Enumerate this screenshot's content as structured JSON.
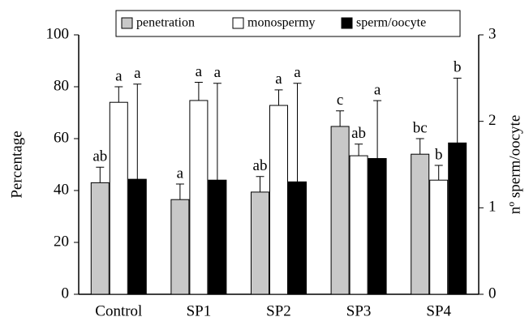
{
  "chart_data": {
    "type": "bar",
    "categories": [
      "Control",
      "SP1",
      "SP2",
      "SP3",
      "SP4"
    ],
    "ylabel": "Percentage",
    "y2label": "nº sperm/oocyte",
    "ylim": [
      0,
      100
    ],
    "yticks": [
      0,
      20,
      40,
      60,
      80,
      100
    ],
    "y2lim": [
      0,
      3
    ],
    "y2ticks": [
      0,
      1,
      2,
      3
    ],
    "legend": "top",
    "series": [
      {
        "name": "penetration",
        "color": "#c8c8c8",
        "values": [
          43,
          36.5,
          39.4,
          64.7,
          54
        ],
        "errors": [
          6,
          6,
          6,
          6,
          6
        ],
        "letters": [
          "ab",
          "a",
          "ab",
          "c",
          "bc"
        ]
      },
      {
        "name": "monospermy",
        "color": "#ffffff",
        "values": [
          74,
          74.7,
          72.8,
          53.4,
          44
        ],
        "errors": [
          6,
          7,
          6,
          4.5,
          5.7
        ],
        "letters": [
          "a",
          "a",
          "a",
          "ab",
          "b"
        ]
      },
      {
        "name": "sperm/oocyte",
        "color": "#000000",
        "axis": "y2",
        "values": [
          1.33,
          1.32,
          1.3,
          1.57,
          1.75
        ],
        "errors": [
          1.1,
          1.12,
          1.14,
          0.67,
          0.75
        ],
        "letters": [
          "a",
          "a",
          "a",
          "a",
          "b"
        ]
      }
    ]
  }
}
